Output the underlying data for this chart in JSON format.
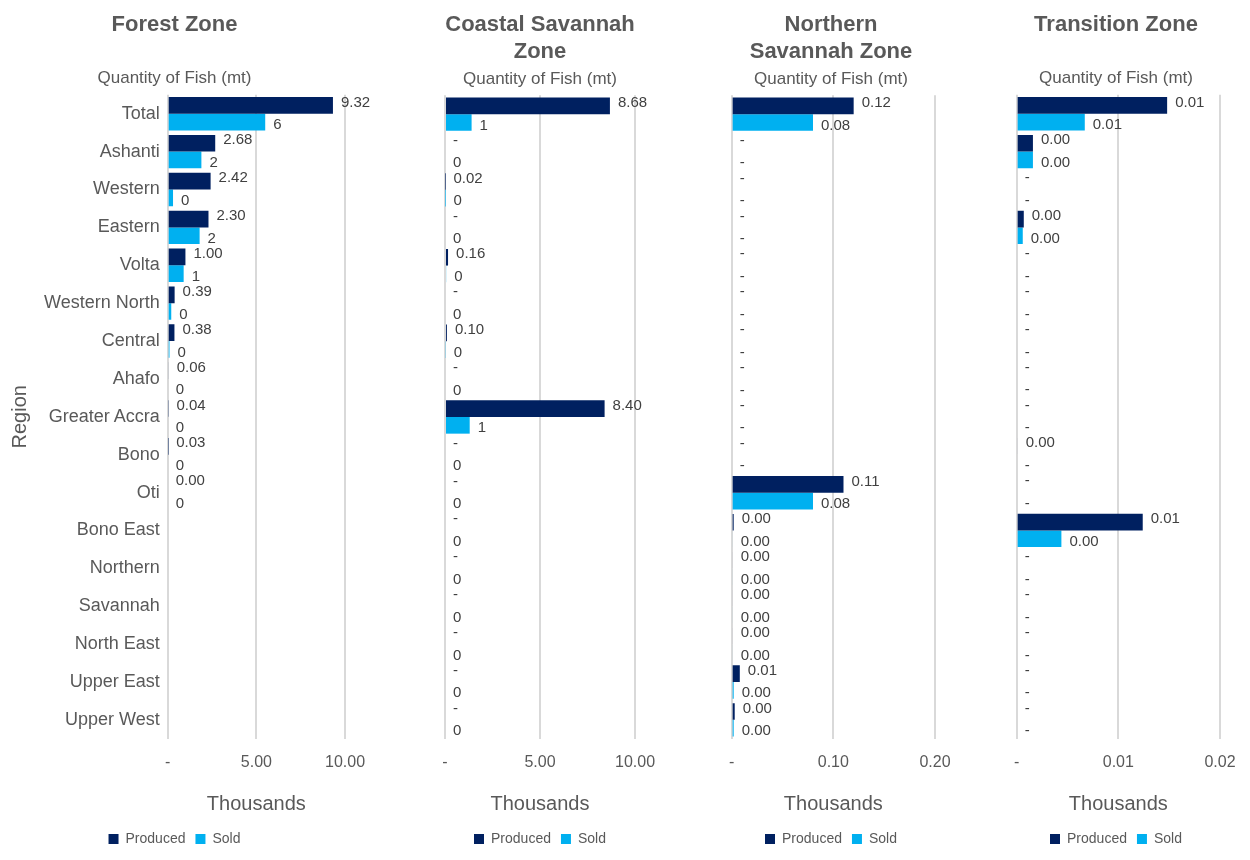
{
  "chart_data": [
    {
      "type": "bar",
      "orientation": "horizontal",
      "title": "Forest Zone",
      "subtitle": "Quantity of Fish (mt)",
      "xlabel": "Thousands",
      "ylabel": "Region",
      "categories": [
        "Total",
        "Ashanti",
        "Western",
        "Eastern",
        "Volta",
        "Western North",
        "Central",
        "Ahafo",
        "Greater Accra",
        "Bono",
        "Oti",
        "Bono East",
        "Northern",
        "Savannah",
        "North East",
        "Upper East",
        "Upper West"
      ],
      "series": [
        {
          "name": "Produced",
          "color": "#002060",
          "values": [
            9.32,
            2.68,
            2.42,
            2.3,
            1.0,
            0.39,
            0.38,
            0.06,
            0.04,
            0.03,
            0.0,
            null,
            null,
            null,
            null,
            null,
            null
          ],
          "value_labels": [
            "9.32",
            "2.68",
            "2.42",
            "2.30",
            "1.00",
            "0.39",
            "0.38",
            "0.06",
            "0.04",
            "0.03",
            "0.00",
            null,
            null,
            null,
            null,
            null,
            null
          ]
        },
        {
          "name": "Sold",
          "color": "#00b0f0",
          "values": [
            5.5,
            1.9,
            0.3,
            1.8,
            0.9,
            0.2,
            0.1,
            0,
            0,
            0,
            0,
            null,
            null,
            null,
            null,
            null,
            null
          ],
          "value_labels": [
            "6",
            "2",
            "0",
            "2",
            "1",
            "0",
            "0",
            "0",
            "0",
            "0",
            "0",
            null,
            null,
            null,
            null,
            null,
            null
          ]
        }
      ],
      "xlim": [
        0,
        10
      ],
      "xticks": [
        {
          "value": 0,
          "label": "-"
        },
        {
          "value": 5,
          "label": "5.00"
        },
        {
          "value": 10,
          "label": "10.00"
        }
      ],
      "grid": "x",
      "legend": "bottom"
    },
    {
      "type": "bar",
      "orientation": "horizontal",
      "title": "Coastal Savannah Zone",
      "subtitle": "Quantity of Fish (mt)",
      "xlabel": "Thousands",
      "categories": [
        null,
        null,
        null,
        null,
        null,
        null,
        null,
        null,
        null,
        null,
        null,
        null,
        null,
        null,
        null,
        null,
        null
      ],
      "series": [
        {
          "name": "Produced",
          "color": "#002060",
          "values": [
            8.68,
            0,
            0.02,
            0,
            0.16,
            0,
            0.1,
            0,
            8.4,
            0,
            0,
            0,
            0,
            0,
            0,
            0,
            0
          ],
          "value_labels": [
            "8.68",
            "-",
            "0.02",
            "-",
            "0.16",
            "-",
            "0.10",
            "-",
            "8.40",
            "-",
            "-",
            "-",
            "-",
            "-",
            "-",
            "-",
            "-"
          ]
        },
        {
          "name": "Sold",
          "color": "#00b0f0",
          "values": [
            1.4,
            0,
            0.02,
            0,
            0.06,
            0,
            0.04,
            0,
            1.3,
            0,
            0,
            0,
            0,
            0,
            0,
            0,
            0
          ],
          "value_labels": [
            "1",
            "0",
            "0",
            "0",
            "0",
            "0",
            "0",
            "0",
            "1",
            "0",
            "0",
            "0",
            "0",
            "0",
            "0",
            "0",
            "0"
          ]
        }
      ],
      "xlim": [
        0,
        10
      ],
      "xticks": [
        {
          "value": 0,
          "label": "-"
        },
        {
          "value": 5,
          "label": "5.00"
        },
        {
          "value": 10,
          "label": "10.00"
        }
      ],
      "grid": "x",
      "legend": "bottom",
      "tick_labels": "x"
    },
    {
      "type": "bar",
      "orientation": "horizontal",
      "title": "Northern Savannah Zone",
      "subtitle": "Quantity of Fish (mt)",
      "xlabel": "Thousands",
      "categories": [
        null,
        null,
        null,
        null,
        null,
        null,
        null,
        null,
        null,
        null,
        null,
        null,
        null,
        null,
        null,
        null,
        null
      ],
      "series": [
        {
          "name": "Produced",
          "color": "#002060",
          "values": [
            0.12,
            0,
            0,
            0,
            0,
            0,
            0,
            0,
            0,
            0,
            0.11,
            0.002,
            0.001,
            0.001,
            0.001,
            0.008,
            0.003
          ],
          "value_labels": [
            "0.12",
            "-",
            "-",
            "-",
            "-",
            "-",
            "-",
            "-",
            "-",
            "-",
            "0.11",
            "0.00",
            "0.00",
            "0.00",
            "0.00",
            "0.01",
            "0.00"
          ]
        },
        {
          "name": "Sold",
          "color": "#00b0f0",
          "values": [
            0.08,
            0,
            0,
            0,
            0,
            0,
            0,
            0,
            0,
            0,
            0.08,
            0.001,
            0.001,
            0.001,
            0.001,
            0.002,
            0.002
          ],
          "value_labels": [
            "0.08",
            "-",
            "-",
            "-",
            "-",
            "-",
            "-",
            "-",
            "-",
            "-",
            "0.08",
            "0.00",
            "0.00",
            "0.00",
            "0.00",
            "0.00",
            "0.00"
          ]
        }
      ],
      "xlim": [
        0,
        0.2
      ],
      "xticks": [
        {
          "value": 0,
          "label": "-"
        },
        {
          "value": 0.1,
          "label": "0.10"
        },
        {
          "value": 0.2,
          "label": "0.20"
        }
      ],
      "grid": "x",
      "legend": "bottom",
      "tick_labels": "x"
    },
    {
      "type": "bar",
      "orientation": "horizontal",
      "title": "Transition Zone",
      "subtitle": "Quantity of Fish (mt)",
      "xlabel": "Thousands",
      "categories": [
        null,
        null,
        null,
        null,
        null,
        null,
        null,
        null,
        null,
        null,
        null,
        null,
        null,
        null,
        null,
        null,
        null
      ],
      "series": [
        {
          "name": "Produced",
          "color": "#002060",
          "values": [
            0.0148,
            0.0016,
            0,
            0.0007,
            0,
            0,
            0,
            0,
            0,
            0.0001,
            0,
            0.0124,
            0,
            0,
            0,
            0,
            0
          ],
          "value_labels": [
            "0.01",
            "0.00",
            "-",
            "0.00",
            "-",
            "-",
            "-",
            "-",
            "-",
            "0.00",
            "-",
            "0.01",
            "-",
            "-",
            "-",
            "-",
            "-"
          ]
        },
        {
          "name": "Sold",
          "color": "#00b0f0",
          "values": [
            0.0067,
            0.0016,
            0,
            0.0006,
            0,
            0,
            0,
            0,
            0,
            0,
            0,
            0.0044,
            0,
            0,
            0,
            0,
            0
          ],
          "value_labels": [
            "0.01",
            "0.00",
            "-",
            "0.00",
            "-",
            "-",
            "-",
            "-",
            "-",
            "-",
            "-",
            "0.00",
            "-",
            "-",
            "-",
            "-",
            "-"
          ]
        }
      ],
      "xlim": [
        0,
        0.02
      ],
      "xticks": [
        {
          "value": 0,
          "label": "-"
        },
        {
          "value": 0.01,
          "label": "0.01"
        },
        {
          "value": 0.02,
          "label": "0.02"
        }
      ],
      "grid": "x",
      "legend": "bottom",
      "tick_labels": "x"
    }
  ]
}
